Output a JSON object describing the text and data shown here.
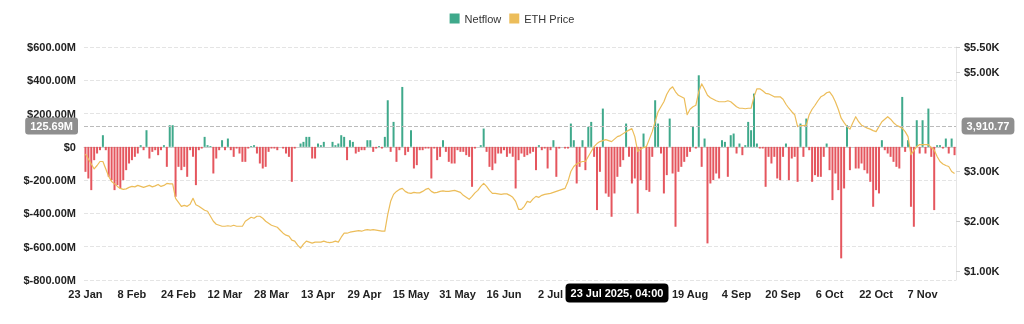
{
  "chart_data": {
    "type": "bar",
    "legend": "top",
    "grid": "y",
    "marker": "none",
    "categories": [
      "23 Jan",
      null,
      null,
      null,
      null,
      null,
      null,
      null,
      null,
      null,
      null,
      null,
      null,
      null,
      null,
      null,
      "8 Feb",
      null,
      null,
      null,
      null,
      null,
      null,
      null,
      null,
      null,
      null,
      null,
      null,
      null,
      null,
      null,
      "24 Feb",
      null,
      null,
      null,
      null,
      null,
      null,
      null,
      null,
      null,
      null,
      null,
      null,
      null,
      null,
      null,
      "12 Mar",
      null,
      null,
      null,
      null,
      null,
      null,
      null,
      null,
      null,
      null,
      null,
      null,
      null,
      null,
      null,
      "28 Mar",
      null,
      null,
      null,
      null,
      null,
      null,
      null,
      null,
      null,
      null,
      null,
      null,
      null,
      null,
      null,
      "13 Apr",
      null,
      null,
      null,
      null,
      null,
      null,
      null,
      null,
      null,
      null,
      null,
      null,
      null,
      null,
      null,
      "29 Apr",
      null,
      null,
      null,
      null,
      null,
      null,
      null,
      null,
      null,
      null,
      null,
      null,
      null,
      null,
      null,
      "15 May",
      null,
      null,
      null,
      null,
      null,
      null,
      null,
      null,
      null,
      null,
      null,
      null,
      null,
      null,
      null,
      "31 May",
      null,
      null,
      null,
      null,
      null,
      null,
      null,
      null,
      null,
      null,
      null,
      null,
      null,
      null,
      null,
      "16 Jun",
      null,
      null,
      null,
      null,
      null,
      null,
      null,
      null,
      null,
      null,
      null,
      null,
      null,
      null,
      null,
      "2 Jul",
      null,
      null,
      null,
      null,
      null,
      null,
      null,
      null,
      null,
      null,
      null,
      null,
      null,
      null,
      null,
      null,
      null,
      null,
      null,
      null,
      null,
      null,
      null,
      null,
      null,
      null,
      null,
      null,
      null,
      null,
      null,
      null,
      null,
      null,
      null,
      null,
      null,
      null,
      null,
      null,
      null,
      null,
      null,
      null,
      null,
      null,
      null,
      "19 Aug",
      null,
      null,
      null,
      null,
      null,
      null,
      null,
      null,
      null,
      null,
      null,
      null,
      null,
      null,
      null,
      "4 Sep",
      null,
      null,
      null,
      null,
      null,
      null,
      null,
      null,
      null,
      null,
      null,
      null,
      null,
      null,
      null,
      "20 Sep",
      null,
      null,
      null,
      null,
      null,
      null,
      null,
      null,
      null,
      null,
      null,
      null,
      null,
      null,
      null,
      "6 Oct",
      null,
      null,
      null,
      null,
      null,
      null,
      null,
      null,
      null,
      null,
      null,
      null,
      null,
      null,
      null,
      "22 Oct",
      null,
      null,
      null,
      null,
      null,
      null,
      null,
      null,
      null,
      null,
      null,
      null,
      null,
      null,
      null,
      "7 Nov",
      null,
      null,
      null,
      null,
      null,
      null,
      null,
      null,
      null,
      null,
      null
    ],
    "ylim": [
      -800,
      600
    ],
    "yticks": [
      {
        "value": -800,
        "label": "$-800.00M"
      },
      {
        "value": -600,
        "label": "$-600.00M"
      },
      {
        "value": -400,
        "label": "$-400.00M"
      },
      {
        "value": -200,
        "label": "$-200.00M"
      },
      {
        "value": 0,
        "label": "$0"
      },
      {
        "value": 200,
        "label": "$200.00M"
      },
      {
        "value": 400,
        "label": "$400.00M"
      },
      {
        "value": 600,
        "label": "$600.00M"
      }
    ],
    "y2lim": [
      820,
      5500
    ],
    "y2ticks": [
      {
        "value": 1000,
        "label": "$1.00K"
      },
      {
        "value": 2000,
        "label": "$2.00K"
      },
      {
        "value": 3000,
        "label": "$3.00K"
      },
      {
        "value": 5000,
        "label": "$5.00K"
      },
      {
        "value": 5500,
        "label": "$5.50K"
      }
    ],
    "annotations": [
      "23 Jul 2025, 04:00",
      "3,910.77"
    ],
    "ref_lines": [
      {
        "axis": "y",
        "value": 125.69,
        "label": "125.69M",
        "color": "#bbbbbb",
        "line_style": "dashed"
      }
    ],
    "series": [
      {
        "name": "Netflow",
        "color": "#3fa98b",
        "colors": [
          "#e5565e",
          "#e5565e",
          "#e5565e",
          "#e5565e",
          "#e5565e",
          "#e5565e",
          "#3fa98b",
          "#e5565e",
          "#e5565e",
          "#e5565e",
          "#e5565e",
          "#e5565e",
          "#e5565e",
          "#e5565e",
          "#e5565e",
          "#e5565e",
          "#e5565e",
          "#e5565e",
          "#e5565e",
          "#3fa98b",
          "#e5565e",
          "#3fa98b",
          "#e5565e",
          "#e5565e",
          "#e5565e",
          "#e5565e",
          "#e5565e",
          "#3fa98b",
          "#e5565e",
          "#3fa98b",
          "#3fa98b",
          "#e5565e",
          "#e5565e",
          "#e5565e",
          "#e5565e",
          "#e5565e",
          "#e5565e",
          "#e5565e",
          "#e5565e",
          "#e5565e",
          "#e5565e",
          "#3fa98b",
          "#3fa98b",
          "#3fa98b",
          "#e5565e",
          "#e5565e",
          "#e5565e",
          "#3fa98b",
          "#e5565e",
          "#3fa98b",
          "#e5565e",
          "#e5565e",
          "#e5565e",
          "#e5565e",
          "#e5565e",
          "#e5565e",
          "#e5565e",
          "#3fa98b",
          "#3fa98b",
          "#e5565e",
          "#e5565e",
          "#e5565e",
          "#e5565e",
          "#e5565e",
          "#e5565e",
          "#e5565e",
          "#e5565e",
          "#3fa98b",
          "#e5565e",
          "#e5565e",
          "#e5565e",
          "#e5565e",
          "#e5565e",
          "#3fa98b",
          "#3fa98b",
          "#3fa98b",
          "#3fa98b",
          "#3fa98b",
          "#e5565e",
          "#e5565e",
          "#3fa98b",
          "#3fa98b",
          "#3fa98b",
          "#3fa98b",
          "#3fa98b",
          "#3fa98b",
          "#3fa98b",
          "#3fa98b",
          "#3fa98b",
          "#3fa98b",
          "#e5565e",
          "#3fa98b",
          "#3fa98b",
          "#e5565e",
          "#e5565e",
          "#e5565e",
          "#e5565e",
          "#3fa98b",
          "#3fa98b",
          "#e5565e",
          "#e5565e",
          "#3fa98b",
          "#e5565e",
          "#3fa98b",
          "#3fa98b",
          "#e5565e",
          "#3fa98b",
          "#e5565e",
          "#e5565e",
          "#3fa98b",
          "#e5565e",
          "#e5565e",
          "#3fa98b",
          "#e5565e",
          "#e5565e",
          "#e5565e",
          "#e5565e",
          "#e5565e",
          "#e5565e",
          "#e5565e",
          "#e5565e",
          "#e5565e",
          "#e5565e",
          "#3fa98b",
          "#e5565e",
          "#e5565e",
          "#e5565e",
          "#e5565e",
          "#e5565e",
          "#e5565e",
          "#e5565e",
          "#e5565e",
          "#e5565e",
          "#e5565e",
          "#e5565e",
          "#3fa98b",
          "#3fa98b",
          "#3fa98b",
          "#e5565e",
          "#e5565e",
          "#e5565e",
          "#e5565e",
          "#e5565e",
          "#e5565e",
          "#e5565e",
          "#e5565e",
          "#e5565e",
          "#e5565e",
          "#e5565e",
          "#e5565e",
          "#e5565e",
          "#e5565e",
          "#e5565e",
          "#e5565e",
          "#e5565e",
          "#e5565e",
          "#3fa98b",
          "#e5565e",
          "#e5565e",
          "#e5565e",
          "#e5565e",
          "#3fa98b",
          "#e5565e",
          "#e5565e",
          "#3fa98b",
          "#e5565e",
          "#e5565e",
          "#3fa98b",
          "#3fa98b",
          "#e5565e",
          "#e5565e",
          "#3fa98b",
          "#e5565e",
          "#3fa98b",
          "#3fa98b",
          "#e5565e",
          "#e5565e",
          "#e5565e",
          "#3fa98b",
          "#e5565e",
          "#e5565e",
          "#e5565e",
          "#e5565e",
          "#e5565e",
          "#e5565e",
          "#e5565e",
          "#3fa98b",
          "#e5565e",
          "#e5565e",
          "#e5565e",
          "#e5565e",
          "#e5565e",
          "#3fa98b",
          "#e5565e",
          "#e5565e",
          "#e5565e",
          "#3fa98b",
          "#3fa98b",
          "#e5565e",
          "#e5565e",
          "#e5565e",
          "#3fa98b",
          "#e5565e",
          "#e5565e",
          "#e5565e",
          "#e5565e",
          "#e5565e",
          "#e5565e",
          "#e5565e",
          "#3fa98b",
          "#e5565e",
          "#3fa98b",
          "#e5565e",
          "#3fa98b",
          "#e5565e",
          "#e5565e",
          "#e5565e",
          "#e5565e",
          "#e5565e",
          "#3fa98b",
          "#3fa98b",
          "#e5565e",
          "#3fa98b",
          "#3fa98b",
          "#e5565e",
          "#3fa98b",
          "#e5565e",
          "#3fa98b",
          "#3fa98b",
          "#3fa98b",
          "#3fa98b",
          "#3fa98b",
          "#e5565e",
          "#e5565e",
          "#e5565e",
          "#e5565e",
          "#e5565e",
          "#e5565e",
          "#e5565e",
          "#e5565e",
          "#e5565e",
          "#3fa98b",
          "#e5565e",
          "#e5565e",
          "#e5565e",
          "#e5565e",
          "#3fa98b",
          "#e5565e",
          "#3fa98b",
          "#e5565e",
          "#e5565e",
          "#e5565e",
          "#e5565e",
          "#e5565e",
          "#e5565e",
          "#3fa98b",
          "#e5565e",
          "#e5565e",
          "#e5565e",
          "#e5565e",
          "#e5565e",
          "#e5565e",
          "#3fa98b",
          "#e5565e",
          "#3fa98b",
          "#e5565e",
          "#e5565e",
          "#e5565e",
          "#e5565e",
          "#e5565e",
          "#e5565e",
          "#e5565e",
          "#e5565e",
          "#e5565e",
          "#3fa98b",
          "#e5565e",
          "#e5565e",
          "#e5565e",
          "#e5565e",
          "#e5565e",
          "#e5565e",
          "#3fa98b",
          "#e5565e",
          "#3fa98b",
          "#e5565e",
          "#e5565e",
          "#3fa98b",
          "#e5565e",
          "#3fa98b",
          "#e5565e",
          "#3fa98b",
          "#e5565e",
          "#e5565e",
          "#3fa98b",
          "#3fa98b",
          "#e5565e",
          "#3fa98b",
          "#e5565e",
          "#3fa98b",
          "#e5565e"
        ],
        "values": [
          -150,
          -190,
          -260,
          -80,
          -40,
          -20,
          70,
          -20,
          -180,
          -200,
          -260,
          -230,
          -250,
          -200,
          -140,
          -100,
          -80,
          -60,
          -40,
          10,
          -20,
          100,
          -70,
          -30,
          -20,
          -50,
          -20,
          10,
          -120,
          130,
          130,
          -300,
          -120,
          -140,
          -120,
          -180,
          -20,
          -60,
          -230,
          -20,
          -10,
          60,
          10,
          5,
          -160,
          -70,
          -20,
          40,
          -20,
          50,
          -20,
          -60,
          -10,
          -40,
          -90,
          -90,
          -10,
          5,
          10,
          -40,
          -100,
          -130,
          -120,
          -30,
          -10,
          -10,
          -20,
          0,
          -10,
          -40,
          -60,
          -210,
          -10,
          0,
          20,
          30,
          60,
          60,
          -70,
          -70,
          20,
          10,
          30,
          0,
          0,
          30,
          10,
          20,
          70,
          60,
          -80,
          40,
          30,
          -40,
          -30,
          -20,
          -20,
          40,
          40,
          -30,
          -10,
          5,
          -10,
          60,
          280,
          -30,
          150,
          -90,
          -20,
          360,
          -50,
          -30,
          100,
          -130,
          -110,
          -20,
          -20,
          -10,
          -10,
          -190,
          -10,
          -80,
          -60,
          40,
          -30,
          -90,
          -100,
          -100,
          -20,
          -30,
          -30,
          -50,
          -60,
          -240,
          -10,
          0,
          10,
          110,
          -30,
          -120,
          -140,
          -100,
          -40,
          -40,
          -20,
          -60,
          -40,
          -60,
          -250,
          -80,
          -40,
          -60,
          -50,
          -40,
          -30,
          -140,
          10,
          -20,
          -10,
          -130,
          -20,
          40,
          -180,
          -10,
          0,
          -10,
          -10,
          140,
          40,
          -220,
          -120,
          40,
          -140,
          120,
          150,
          -60,
          -380,
          -150,
          230,
          -280,
          -300,
          -420,
          -280,
          -180,
          -120,
          -80,
          140,
          -60,
          -220,
          -190,
          -400,
          -200,
          80,
          -260,
          -270,
          -60,
          280,
          140,
          -40,
          -280,
          -170,
          170,
          -160,
          -480,
          -150,
          -120,
          -90,
          -60,
          -30,
          120,
          -10,
          430,
          -120,
          50,
          -580,
          -220,
          -200,
          -160,
          -190,
          40,
          30,
          -180,
          70,
          80,
          -40,
          20,
          -50,
          10,
          150,
          100,
          320,
          20,
          -10,
          -10,
          -240,
          -60,
          -100,
          -60,
          -190,
          -200,
          -60,
          20,
          -200,
          -70,
          -60,
          -210,
          140,
          -60,
          170,
          -20,
          -210,
          -170,
          -180,
          -180,
          -60,
          20,
          -140,
          -320,
          -160,
          -260,
          -670,
          -250,
          130,
          -140,
          0,
          -130,
          -130,
          -100,
          -140,
          -160,
          -210,
          -360,
          -260,
          -280,
          40,
          -20,
          -40,
          -60,
          -90,
          -120,
          -130,
          300,
          -30,
          40,
          -360,
          -480,
          160,
          -40,
          160,
          -40,
          230,
          -60,
          -380,
          10,
          10,
          -10,
          50,
          -40,
          50,
          -50
        ]
      },
      {
        "name": "ETH Price",
        "type": "line",
        "axis": "y2",
        "color": "#ecbd5a",
        "values": [
          3350,
          3250,
          3150,
          3050,
          3120,
          3200,
          3200,
          3050,
          2900,
          2800,
          2750,
          2700,
          2660,
          2640,
          2650,
          2680,
          2700,
          2690,
          2720,
          2700,
          2680,
          2700,
          2720,
          2690,
          2710,
          2740,
          2700,
          2720,
          2760,
          2750,
          2750,
          2460,
          2380,
          2300,
          2320,
          2300,
          2340,
          2460,
          2330,
          2300,
          2260,
          2220,
          2200,
          2100,
          2000,
          1940,
          1920,
          1900,
          1900,
          1910,
          1900,
          1920,
          1900,
          1900,
          1900,
          2000,
          2040,
          2080,
          2060,
          2100,
          2100,
          2060,
          2000,
          1960,
          1920,
          1900,
          1880,
          1820,
          1760,
          1720,
          1700,
          1620,
          1600,
          1520,
          1460,
          1540,
          1600,
          1580,
          1560,
          1580,
          1580,
          1580,
          1600,
          1580,
          1570,
          1580,
          1600,
          1580,
          1680,
          1760,
          1760,
          1780,
          1790,
          1800,
          1810,
          1800,
          1820,
          1830,
          1820,
          1830,
          1820,
          1810,
          1800,
          1800,
          2140,
          2400,
          2540,
          2600,
          2640,
          2660,
          2600,
          2570,
          2560,
          2580,
          2570,
          2570,
          2600,
          2640,
          2660,
          2600,
          2570,
          2580,
          2600,
          2610,
          2600,
          2600,
          2610,
          2620,
          2600,
          2580,
          2520,
          2480,
          2440,
          2500,
          2570,
          2620,
          2700,
          2760,
          2700,
          2620,
          2560,
          2560,
          2550,
          2540,
          2550,
          2550,
          2520,
          2480,
          2400,
          2240,
          2240,
          2300,
          2400,
          2380,
          2450,
          2500,
          2480,
          2520,
          2540,
          2550,
          2560,
          2580,
          2600,
          2620,
          2640,
          2660,
          2800,
          3000,
          3100,
          3150,
          3180,
          3200,
          3200,
          3300,
          3400,
          3500,
          3560,
          3600,
          3620,
          3640,
          3620,
          3600,
          3650,
          3700,
          3720,
          3760,
          3800,
          3830,
          3860,
          3700,
          3400,
          3450,
          3480,
          3500,
          3650,
          3800,
          4000,
          4200,
          4300,
          4400,
          4550,
          4650,
          4700,
          4600,
          4530,
          4500,
          4470,
          4140,
          4250,
          4300,
          4330,
          4600,
          4760,
          4650,
          4530,
          4480,
          4450,
          4420,
          4400,
          4400,
          4400,
          4420,
          4400,
          4350,
          4300,
          4270,
          4270,
          4260,
          4270,
          4270,
          4500,
          4660,
          4660,
          4620,
          4570,
          4560,
          4530,
          4500,
          4500,
          4500,
          4450,
          4350,
          4270,
          4200,
          4140,
          3900,
          3920,
          3920,
          3930,
          4140,
          4250,
          4330,
          4420,
          4500,
          4530,
          4580,
          4600,
          4520,
          4400,
          4250,
          4070,
          3980,
          3900,
          3850,
          3980,
          4100,
          4000,
          3930,
          3900,
          3870,
          3850,
          3820,
          3800,
          3900,
          4000,
          4050,
          4100,
          4050,
          3980,
          3930,
          3900,
          3870,
          3800,
          3700,
          3340,
          3420,
          3500,
          3540,
          3540,
          3540,
          3540,
          3480,
          3430,
          3300,
          3200,
          3150,
          3120,
          3100,
          3000,
          2960
        ]
      }
    ]
  }
}
